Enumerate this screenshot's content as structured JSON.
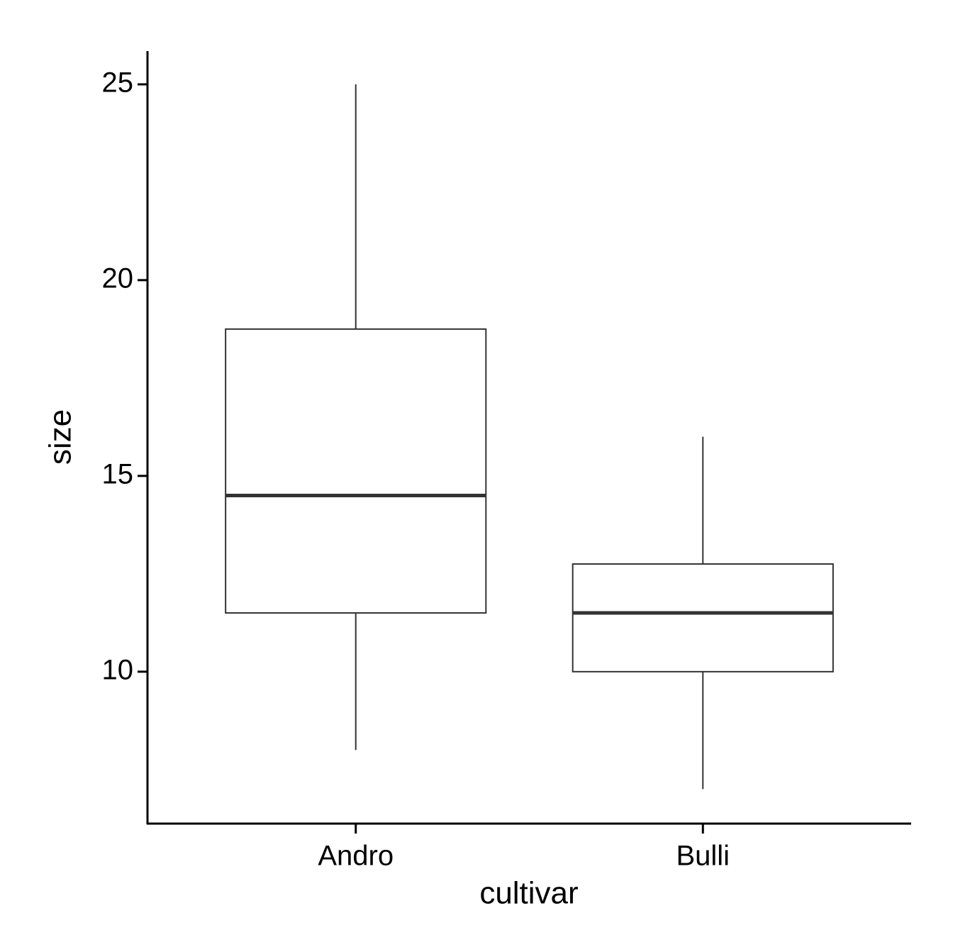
{
  "chart_data": {
    "type": "box",
    "x_label": "cultivar",
    "y_label": "size",
    "categories": [
      "Andro",
      "Bulli"
    ],
    "whisker_low": [
      8,
      7
    ],
    "q1": [
      11.5,
      10
    ],
    "median": [
      14.5,
      11.5
    ],
    "q3": [
      18.75,
      12.75
    ],
    "whisker_high": [
      25,
      16
    ],
    "box_color": "#333333",
    "fill": "#ffffff",
    "ylim": [
      6.12,
      25.85
    ],
    "yticks": [
      10,
      15,
      20,
      25
    ]
  }
}
